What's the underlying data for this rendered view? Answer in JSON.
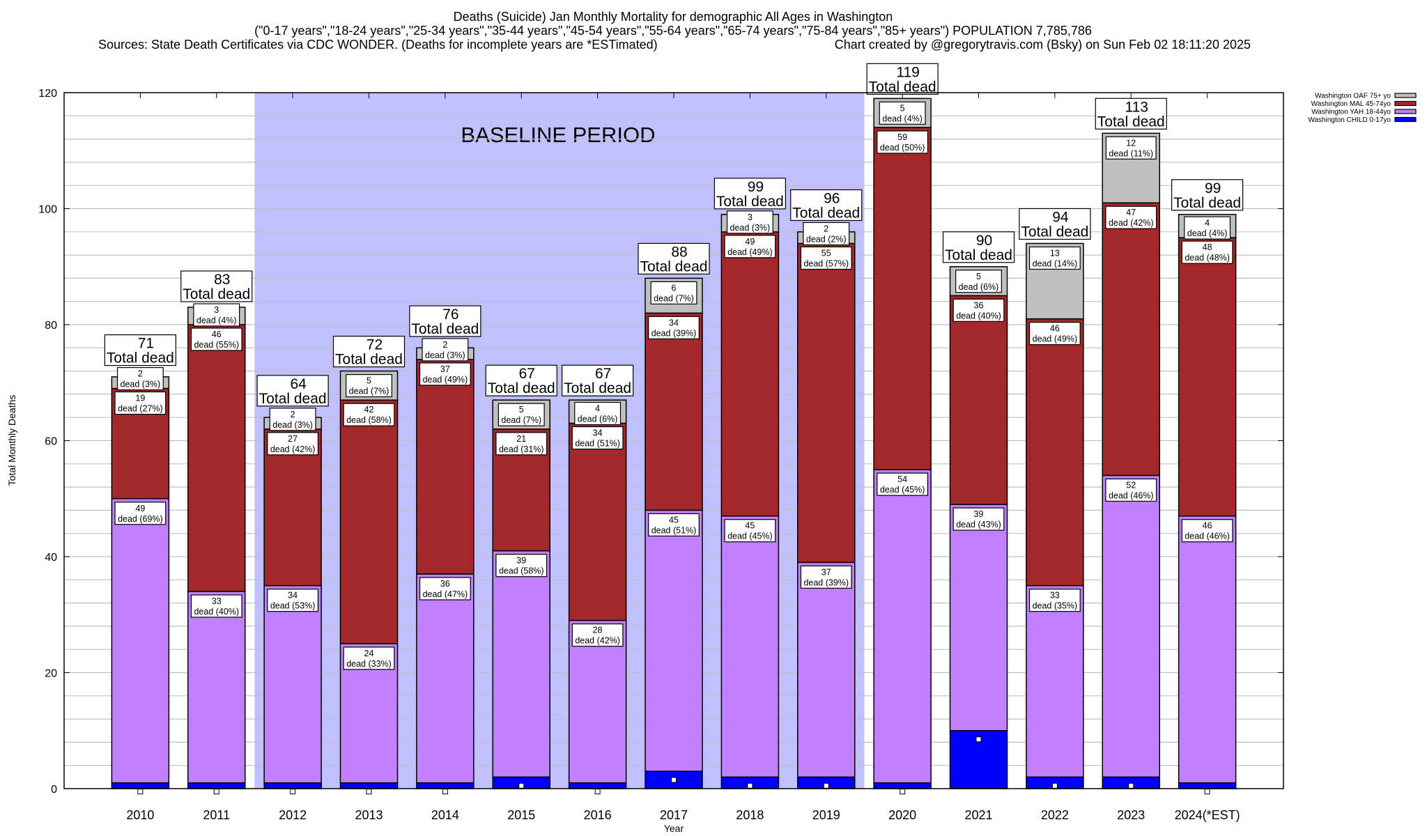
{
  "header": {
    "title_line1": "Deaths (Suicide) Jan Monthly Mortality for demographic All Ages in Washington",
    "title_line2": "(\"0-17 years\",\"18-24 years\",\"25-34 years\",\"35-44 years\",\"45-54 years\",\"55-64 years\",\"65-74 years\",\"75-84 years\",\"85+ years\") POPULATION 7,785,786",
    "sources": "Sources: State Death Certificates via CDC WONDER. (Deaths for incomplete years are *ESTimated)",
    "credit": "Chart created by @gregorytravis.com (Bsky) on Sun Feb 02 18:11:20 2025"
  },
  "chart_data": {
    "type": "bar",
    "stacked": true,
    "xlabel": "Year",
    "ylabel": "Total Monthly Deaths",
    "ylim": [
      0,
      120
    ],
    "yticks": [
      0,
      20,
      40,
      60,
      80,
      100,
      120
    ],
    "grid": true,
    "grid_step": 4,
    "legend_position": "top-right, outside",
    "categories": [
      "2010",
      "2011",
      "2012",
      "2013",
      "2014",
      "2015",
      "2016",
      "2017",
      "2018",
      "2019",
      "2020",
      "2021",
      "2022",
      "2023",
      "2024(*EST)"
    ],
    "annotation": {
      "text": "BASELINE PERIOD",
      "from": "2012",
      "to": "2019",
      "color": "#c0c0ff"
    },
    "total_suffix": "Total dead",
    "totals": [
      71,
      83,
      64,
      72,
      76,
      67,
      67,
      88,
      99,
      96,
      119,
      90,
      94,
      113,
      99
    ],
    "series": [
      {
        "name": "Washington CHILD 0-17yo",
        "color": "#0000ff",
        "values": [
          1,
          1,
          1,
          1,
          1,
          2,
          1,
          3,
          2,
          2,
          1,
          10,
          2,
          2,
          1
        ],
        "labels": null
      },
      {
        "name": "Washington YAH 18-44yo",
        "color": "#c080ff",
        "values": [
          49,
          33,
          34,
          24,
          36,
          39,
          28,
          45,
          45,
          37,
          54,
          39,
          33,
          52,
          46
        ],
        "labels": [
          "dead (69%)",
          "dead (40%)",
          "dead (53%)",
          "dead (33%)",
          "dead (47%)",
          "dead (58%)",
          "dead (42%)",
          "dead (51%)",
          "dead (45%)",
          "dead (39%)",
          "dead (45%)",
          "dead (43%)",
          "dead (35%)",
          "dead (46%)",
          "dead (46%)"
        ]
      },
      {
        "name": "Washington MAL 45-74yo",
        "color": "#a4282a",
        "values": [
          19,
          46,
          27,
          42,
          37,
          21,
          34,
          34,
          49,
          55,
          59,
          36,
          46,
          47,
          48
        ],
        "labels": [
          "dead (27%)",
          "dead (55%)",
          "dead (42%)",
          "dead (58%)",
          "dead (49%)",
          "dead (31%)",
          "dead (51%)",
          "dead (39%)",
          "dead (49%)",
          "dead (57%)",
          "dead (50%)",
          "dead (40%)",
          "dead (49%)",
          "dead (42%)",
          "dead (48%)"
        ]
      },
      {
        "name": "Washington OAF 75+ yo",
        "color": "#c0c0c0",
        "values": [
          2,
          3,
          2,
          5,
          2,
          5,
          4,
          6,
          3,
          2,
          5,
          5,
          13,
          12,
          4
        ],
        "labels": [
          "dead (3%)",
          "dead (4%)",
          "dead (3%)",
          "dead (7%)",
          "dead (3%)",
          "dead (7%)",
          "dead (6%)",
          "dead (7%)",
          "dead (3%)",
          "dead (2%)",
          "dead (4%)",
          "dead (6%)",
          "dead (14%)",
          "dead (11%)",
          "dead (4%)"
        ]
      }
    ]
  }
}
